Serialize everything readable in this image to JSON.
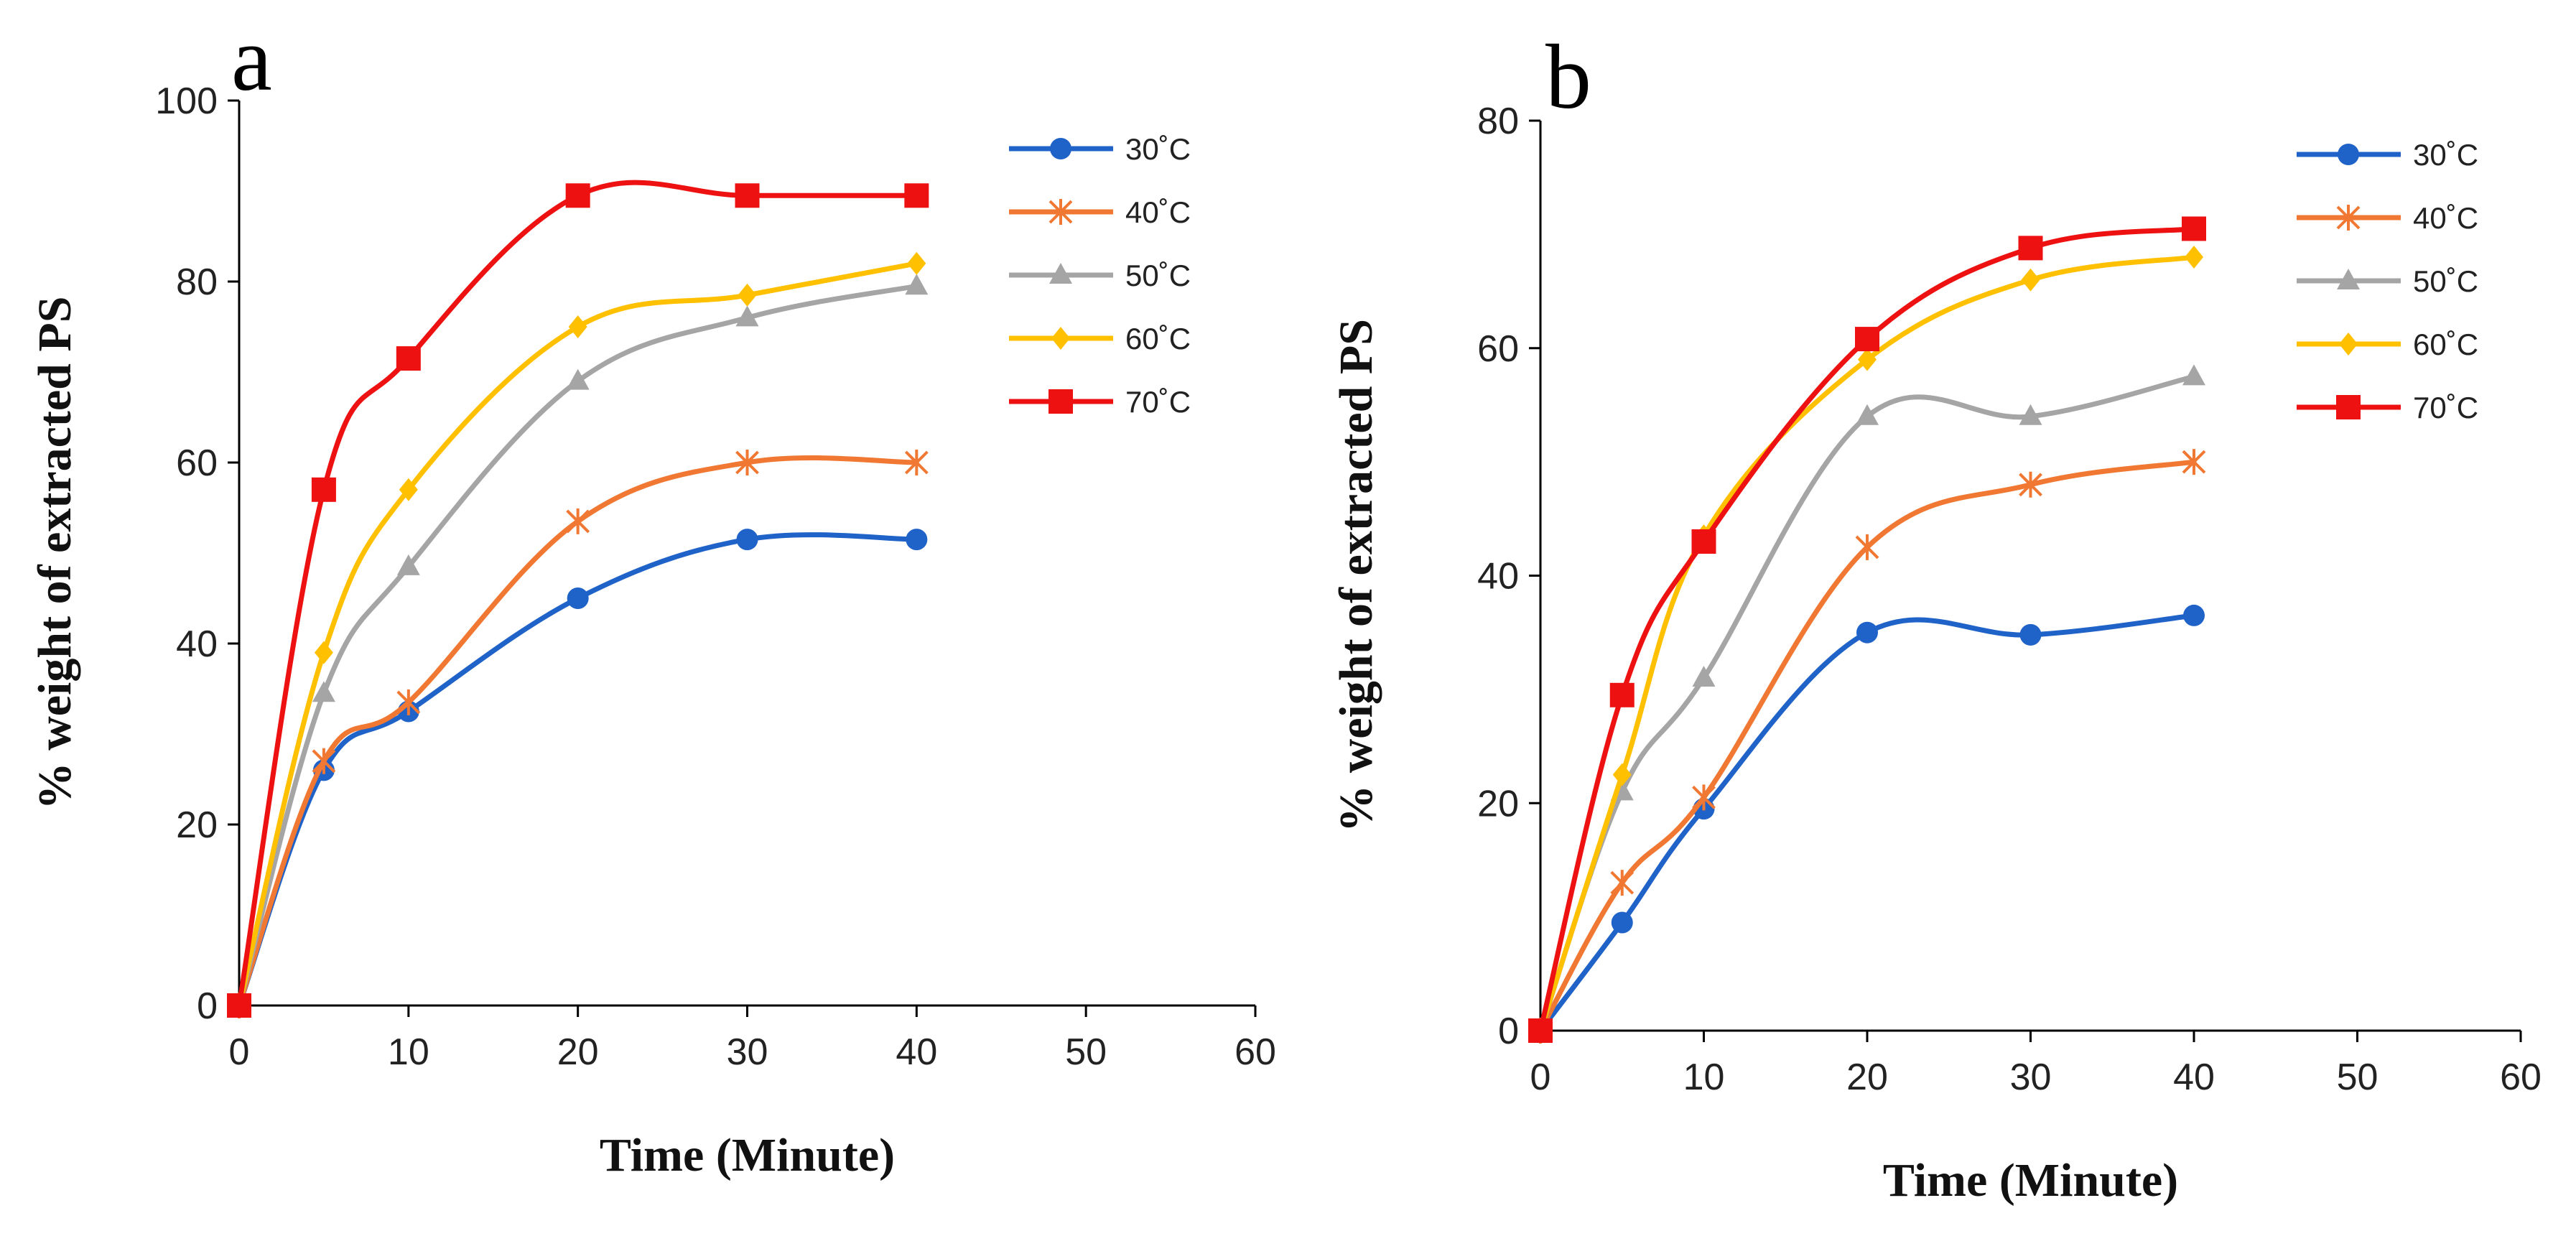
{
  "chart_data": [
    {
      "panel": "a",
      "type": "line",
      "title": "",
      "xlabel": "Time (Minute)",
      "ylabel": "% weight of extracted PS",
      "xlim": [
        0,
        60
      ],
      "ylim": [
        0,
        100
      ],
      "xticks": [
        0,
        10,
        20,
        30,
        40,
        50,
        60
      ],
      "yticks": [
        0,
        20,
        40,
        60,
        80,
        100
      ],
      "grid": false,
      "legend_position": "top-right",
      "x": [
        0,
        5,
        10,
        20,
        30,
        40
      ],
      "series": [
        {
          "name": "30˚C",
          "color": "#1F62C8",
          "marker": "circle",
          "values": [
            0,
            26,
            32.5,
            45,
            51.5,
            51.5
          ]
        },
        {
          "name": "40˚C",
          "color": "#F07833",
          "marker": "asterisk",
          "values": [
            0,
            27,
            33.5,
            53.5,
            60,
            60
          ]
        },
        {
          "name": "50˚C",
          "color": "#A5A5A5",
          "marker": "triangle",
          "values": [
            0,
            34.5,
            48.5,
            69,
            76,
            79.5
          ]
        },
        {
          "name": "60˚C",
          "color": "#FFC000",
          "marker": "diamond",
          "values": [
            0,
            39,
            57,
            75,
            78.5,
            82
          ]
        },
        {
          "name": "70˚C",
          "color": "#EE1111",
          "marker": "square",
          "values": [
            0,
            57,
            71.5,
            89.5,
            89.5,
            89.5
          ]
        }
      ]
    },
    {
      "panel": "b",
      "type": "line",
      "title": "",
      "xlabel": "Time (Minute)",
      "ylabel": "% weight of extracted PS",
      "xlim": [
        0,
        60
      ],
      "ylim": [
        0,
        80
      ],
      "xticks": [
        0,
        10,
        20,
        30,
        40,
        50,
        60
      ],
      "yticks": [
        0,
        20,
        40,
        60,
        80
      ],
      "grid": false,
      "legend_position": "top-right",
      "x": [
        0,
        5,
        10,
        20,
        30,
        40
      ],
      "series": [
        {
          "name": "30˚C",
          "color": "#1F62C8",
          "marker": "circle",
          "values": [
            0,
            9.5,
            19.5,
            35,
            34.8,
            36.5
          ]
        },
        {
          "name": "40˚C",
          "color": "#F07833",
          "marker": "asterisk",
          "values": [
            0,
            13,
            20.5,
            42.5,
            48,
            50
          ]
        },
        {
          "name": "50˚C",
          "color": "#A5A5A5",
          "marker": "triangle",
          "values": [
            0,
            21,
            31,
            54,
            54,
            57.5
          ]
        },
        {
          "name": "60˚C",
          "color": "#FFC000",
          "marker": "diamond",
          "values": [
            0,
            22.5,
            43.5,
            59,
            66,
            68
          ]
        },
        {
          "name": "70˚C",
          "color": "#EE1111",
          "marker": "square",
          "values": [
            0,
            29.5,
            43,
            60.8,
            68.8,
            70.5
          ]
        }
      ]
    }
  ]
}
